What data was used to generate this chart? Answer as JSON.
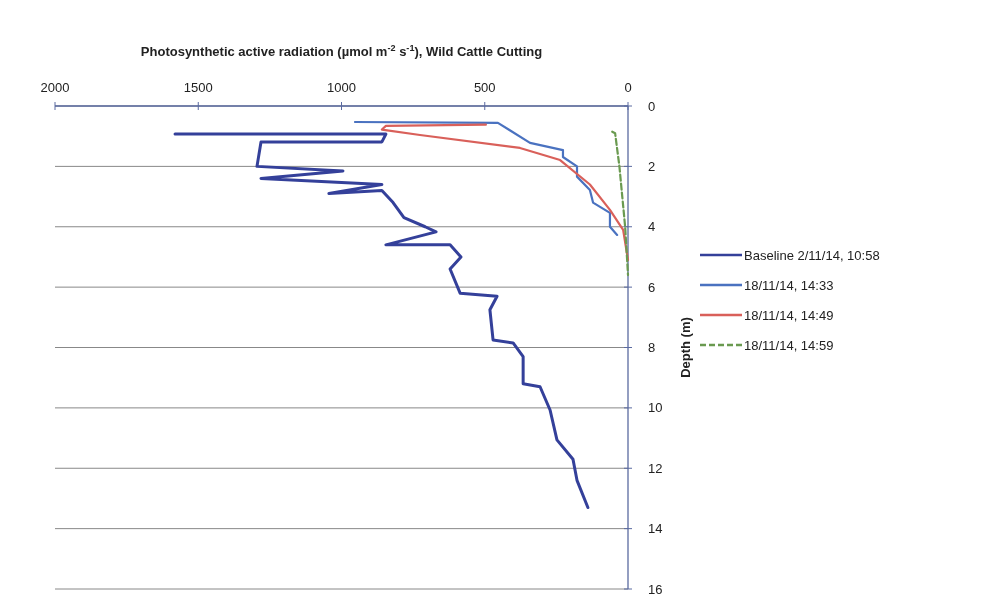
{
  "chart_data": {
    "type": "line",
    "xlabel": "Photosynthetic active radiation (µmol m$^{-2}$ s$^{-1}$), Wild Cattle Cutting",
    "ylabel": "Depth (m)",
    "xlim": [
      2000,
      0
    ],
    "xticks": [
      2000,
      1500,
      1000,
      500,
      0
    ],
    "ylim": [
      16,
      0
    ],
    "yticks": [
      0,
      2,
      4,
      6,
      8,
      10,
      12,
      14,
      16
    ],
    "grid": "y",
    "legend": "right",
    "series": [
      {
        "name": "Baseline 2/11/14, 10:58",
        "color": "#34409a",
        "x": [
          1581,
          845,
          859,
          1281,
          1295,
          995,
          1281,
          859,
          1044,
          859,
          820,
          782,
          708,
          670,
          845,
          621,
          583,
          621,
          586,
          457,
          482,
          471,
          401,
          366,
          366,
          307,
          272,
          248,
          192,
          178,
          140
        ],
        "values": [
          0.93,
          0.93,
          1.19,
          1.19,
          2.0,
          2.15,
          2.4,
          2.6,
          2.9,
          2.8,
          3.2,
          3.7,
          4.0,
          4.17,
          4.6,
          4.6,
          5.0,
          5.4,
          6.2,
          6.3,
          6.75,
          7.75,
          7.85,
          8.3,
          9.2,
          9.3,
          10.07,
          11.06,
          11.7,
          12.4,
          13.3
        ]
      },
      {
        "name": "18/11/14, 14:33",
        "color": "#4a72c0",
        "x": [
          953,
          454,
          342,
          227,
          227,
          178,
          178,
          133,
          122,
          63,
          63,
          38
        ],
        "values": [
          0.53,
          0.56,
          1.22,
          1.46,
          1.69,
          2.0,
          2.34,
          2.78,
          3.2,
          3.54,
          4.0,
          4.27
        ]
      },
      {
        "name": "18/11/14, 14:49",
        "color": "#d9605a",
        "x": [
          496,
          845,
          859,
          726,
          377,
          237,
          133,
          63,
          17,
          0
        ],
        "values": [
          0.62,
          0.66,
          0.78,
          0.96,
          1.39,
          1.79,
          2.6,
          3.44,
          4.1,
          5.1
        ]
      },
      {
        "name": "18/11/14, 14:59",
        "color": "#6a9a50",
        "line_style": "dashed",
        "x": [
          55,
          45,
          30,
          20,
          10,
          3,
          0
        ],
        "values": [
          0.85,
          0.9,
          2.0,
          3.0,
          4.0,
          5.1,
          5.6
        ]
      }
    ]
  }
}
